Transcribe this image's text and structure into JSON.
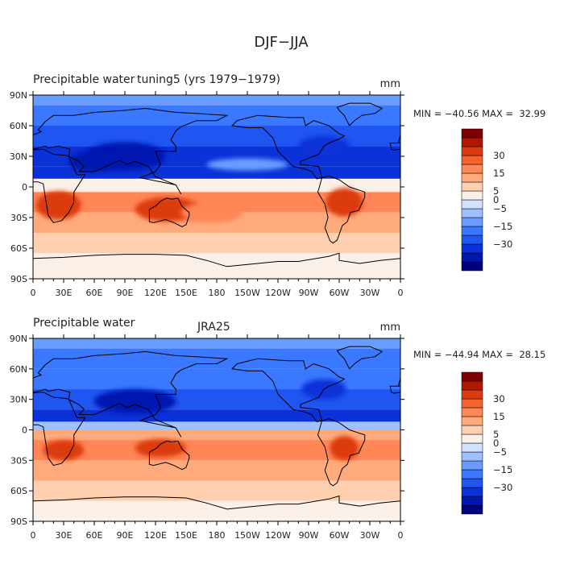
{
  "figure": {
    "title": "DJF−JJA"
  },
  "colorbar": {
    "colors": [
      "#000080",
      "#0018b0",
      "#0a32d8",
      "#1f55f0",
      "#3a78ff",
      "#6a9cff",
      "#9ec0ff",
      "#cfe2ff",
      "#fbf0e8",
      "#ffd0b0",
      "#ffaa7c",
      "#ff8656",
      "#f4622e",
      "#dc3a10",
      "#b01800",
      "#800000"
    ],
    "labels": [
      {
        "text": "30",
        "boundary": 13
      },
      {
        "text": "15",
        "boundary": 11
      },
      {
        "text": "5",
        "boundary": 9
      },
      {
        "text": "0",
        "boundary": 8
      },
      {
        "text": "−5",
        "boundary": 7
      },
      {
        "text": "−15",
        "boundary": 5
      },
      {
        "text": "−30",
        "boundary": 3
      }
    ]
  },
  "chart_data": [
    {
      "type": "heatmap",
      "title": "Precipitable water",
      "subtitle": "tuning5 (yrs 1979−1979)",
      "units": "mm",
      "min": -40.56,
      "max": 32.99,
      "stats_text": "MIN = −40.56 MAX =  32.99",
      "x_ticks": [
        "0",
        "30E",
        "60E",
        "90E",
        "120E",
        "150E",
        "180",
        "150W",
        "120W",
        "90W",
        "60W",
        "30W",
        "0"
      ],
      "y_ticks": [
        "90N",
        "60N",
        "30N",
        "0",
        "30S",
        "60S",
        "90S"
      ],
      "lat_bands": [
        {
          "lat_top": 90,
          "lat_bottom": 80,
          "value": -10
        },
        {
          "lat_top": 80,
          "lat_bottom": 60,
          "value": -13
        },
        {
          "lat_top": 60,
          "lat_bottom": 40,
          "value": -16
        },
        {
          "lat_top": 40,
          "lat_bottom": 20,
          "value": -22
        },
        {
          "lat_top": 20,
          "lat_bottom": 8,
          "value": -30
        },
        {
          "lat_top": 8,
          "lat_bottom": -5,
          "value": 1
        },
        {
          "lat_top": -5,
          "lat_bottom": -25,
          "value": 10
        },
        {
          "lat_top": -25,
          "lat_bottom": -45,
          "value": 7
        },
        {
          "lat_top": -45,
          "lat_bottom": -65,
          "value": 4
        },
        {
          "lat_top": -65,
          "lat_bottom": -90,
          "value": 1
        }
      ],
      "anomalies": [
        {
          "lon": 25,
          "lat": -18,
          "rx": 22,
          "ry": 14,
          "value": 28
        },
        {
          "lon": 132,
          "lat": -22,
          "rx": 32,
          "ry": 12,
          "value": 22
        },
        {
          "lon": 175,
          "lat": -25,
          "rx": 30,
          "ry": 10,
          "value": 14
        },
        {
          "lon": 305,
          "lat": -15,
          "rx": 18,
          "ry": 14,
          "value": 28
        },
        {
          "lon": 90,
          "lat": 30,
          "rx": 40,
          "ry": 14,
          "value": -36
        },
        {
          "lon": 60,
          "lat": 25,
          "rx": 25,
          "ry": 10,
          "value": -32
        },
        {
          "lon": 285,
          "lat": 40,
          "rx": 25,
          "ry": 10,
          "value": -28
        },
        {
          "lon": 210,
          "lat": 22,
          "rx": 40,
          "ry": 6,
          "value": -8
        }
      ]
    },
    {
      "type": "heatmap",
      "title": "Precipitable water",
      "subtitle": "JRA25",
      "units": "mm",
      "min": -44.94,
      "max": 28.15,
      "stats_text": "MIN = −44.94 MAX =  28.15",
      "x_ticks": [
        "0",
        "30E",
        "60E",
        "90E",
        "120E",
        "150E",
        "180",
        "150W",
        "120W",
        "90W",
        "60W",
        "30W",
        "0"
      ],
      "y_ticks": [
        "90N",
        "60N",
        "30N",
        "0",
        "30S",
        "60S",
        "90S"
      ],
      "lat_bands": [
        {
          "lat_top": 90,
          "lat_bottom": 80,
          "value": -8
        },
        {
          "lat_top": 80,
          "lat_bottom": 60,
          "value": -12
        },
        {
          "lat_top": 60,
          "lat_bottom": 40,
          "value": -15
        },
        {
          "lat_top": 40,
          "lat_bottom": 20,
          "value": -20
        },
        {
          "lat_top": 20,
          "lat_bottom": 8,
          "value": -28
        },
        {
          "lat_top": 8,
          "lat_bottom": 0,
          "value": -4
        },
        {
          "lat_top": 0,
          "lat_bottom": -10,
          "value": 8
        },
        {
          "lat_top": -10,
          "lat_bottom": -30,
          "value": 12
        },
        {
          "lat_top": -30,
          "lat_bottom": -50,
          "value": 6
        },
        {
          "lat_top": -50,
          "lat_bottom": -70,
          "value": 4
        },
        {
          "lat_top": -70,
          "lat_bottom": -90,
          "value": 1
        }
      ],
      "anomalies": [
        {
          "lon": 30,
          "lat": -20,
          "rx": 20,
          "ry": 10,
          "value": 22
        },
        {
          "lon": 125,
          "lat": -18,
          "rx": 25,
          "ry": 9,
          "value": 20
        },
        {
          "lon": 305,
          "lat": -18,
          "rx": 14,
          "ry": 12,
          "value": 22
        },
        {
          "lon": 100,
          "lat": 28,
          "rx": 40,
          "ry": 12,
          "value": -34
        },
        {
          "lon": 285,
          "lat": 40,
          "rx": 22,
          "ry": 10,
          "value": -28
        }
      ]
    }
  ]
}
